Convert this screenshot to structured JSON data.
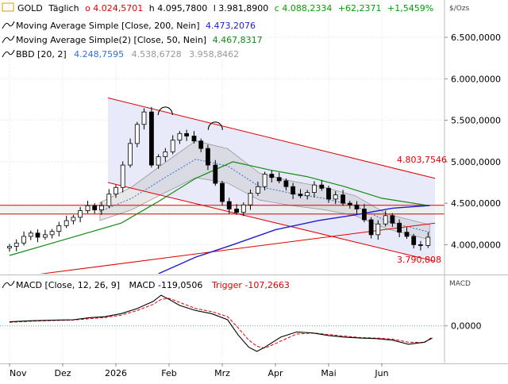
{
  "legend": {
    "line1": {
      "name": "GOLD",
      "period": "Täglich",
      "open": "o 4.024,5701",
      "high": "h 4.095,7800",
      "low": "l 3.981,8900",
      "close": "c 4.088,2334",
      "change": "+62,2371",
      "change_pct": "+1,5459%"
    },
    "ma200": {
      "label": "Moving Average Simple  [Close, 200, Nein]",
      "value": "4.473,2076"
    },
    "ma50": {
      "label": "Moving Average Simple(2)  [Close, 50, Nein]",
      "value": "4.467,8317"
    },
    "bbd": {
      "label": "BBD  [20, 2]",
      "mid": "4.248,7595",
      "upper": "4.538,6728",
      "lower": "3.958,8462"
    }
  },
  "unit_label": "$/Ozs",
  "macd": {
    "label": "MACD  [Close, 12, 26, 9]",
    "macd_text": "MACD -119,0506",
    "trigger_text": "Trigger -107,2663",
    "axis_label": "MACD",
    "zero_label": "0,0000"
  },
  "annotations": {
    "upper_value": "4.803,7546",
    "lower_value": "3.790,808"
  },
  "colors": {
    "price": "#000000",
    "up": "#00a000",
    "down": "#e00000",
    "ma200": "#1d1dcc",
    "ma50": "#138a13",
    "bollinger": "#999999",
    "channel": "#e00000",
    "channel_fill": "#e4e6f8",
    "signal": "#e00000",
    "accent_blue": "#3070d0"
  },
  "chart_data": [
    {
      "type": "line",
      "x_tick_labels": [
        "Nov",
        "Dez",
        "2026",
        "Feb",
        "Mrz",
        "Apr",
        "Mai",
        "Jun"
      ],
      "y_tick_labels": [
        "4.000,0000",
        "4.500,0000",
        "5.000,0000",
        "5.500,0000",
        "6.000,0000",
        "6.500,0000"
      ],
      "y_ticks": [
        4000,
        4500,
        5000,
        5500,
        6000,
        6500
      ],
      "ylim": [
        3650,
        6950
      ],
      "horizontal_levels": [
        4475,
        4370
      ],
      "trend_channel_upper": [
        [
          1.85,
          5770
        ],
        [
          8.0,
          4800
        ]
      ],
      "trend_channel_lower": [
        [
          1.85,
          4750
        ],
        [
          8.0,
          3800
        ]
      ],
      "support_line": [
        [
          -0.1,
          3590
        ],
        [
          8.0,
          4260
        ]
      ],
      "series": [
        {
          "name": "GOLD",
          "x": [
            0.0,
            0.13,
            0.27,
            0.4,
            0.53,
            0.67,
            0.8,
            0.93,
            1.07,
            1.2,
            1.33,
            1.47,
            1.6,
            1.73,
            1.87,
            2.0,
            2.13,
            2.27,
            2.4,
            2.53,
            2.67,
            2.8,
            2.93,
            3.07,
            3.2,
            3.33,
            3.47,
            3.6,
            3.73,
            3.87,
            4.0,
            4.13,
            4.27,
            4.4,
            4.53,
            4.67,
            4.8,
            4.93,
            5.07,
            5.2,
            5.33,
            5.47,
            5.6,
            5.73,
            5.87,
            6.0,
            6.13,
            6.27,
            6.4,
            6.53,
            6.67,
            6.8,
            6.93,
            7.07,
            7.2,
            7.33,
            7.47,
            7.6,
            7.73,
            7.87
          ],
          "y": [
            3980,
            4020,
            4100,
            4140,
            4090,
            4120,
            4160,
            4230,
            4290,
            4330,
            4410,
            4470,
            4420,
            4470,
            4610,
            4690,
            4960,
            5220,
            5450,
            5600,
            4960,
            5060,
            5120,
            5260,
            5340,
            5310,
            5250,
            5160,
            4960,
            4740,
            4520,
            4430,
            4390,
            4480,
            4620,
            4700,
            4850,
            4810,
            4770,
            4700,
            4610,
            4590,
            4630,
            4720,
            4680,
            4550,
            4600,
            4500,
            4480,
            4430,
            4300,
            4120,
            4250,
            4350,
            4260,
            4150,
            4100,
            4000,
            3990,
            4090
          ]
        },
        {
          "name": "Moving Average Simple  [Close, 200, Nein]",
          "x": [
            2.8,
            3.5,
            4.2,
            5.0,
            5.8,
            6.5,
            7.2,
            7.9
          ],
          "y": [
            3650,
            3850,
            4000,
            4180,
            4290,
            4360,
            4440,
            4473
          ]
        },
        {
          "name": "Moving Average Simple(2)  [Close, 50, Nein]",
          "x": [
            0.0,
            0.7,
            1.4,
            2.1,
            2.8,
            3.5,
            4.2,
            4.9,
            5.6,
            6.3,
            7.0,
            7.9
          ],
          "y": [
            3870,
            4000,
            4130,
            4260,
            4520,
            4800,
            5000,
            4900,
            4820,
            4700,
            4560,
            4470
          ]
        },
        {
          "name": "BBD  [20, 2]",
          "x": [
            1.7,
            2.3,
            2.9,
            3.5,
            4.1,
            4.7,
            5.3,
            5.9,
            6.5,
            7.1,
            7.9
          ],
          "y": [
            4400,
            4560,
            4800,
            5030,
            4950,
            4700,
            4620,
            4560,
            4470,
            4280,
            4150
          ]
        }
      ]
    },
    {
      "type": "line",
      "title": "MACD  [Close, 12, 26, 9]",
      "ylim": [
        -360,
        480
      ],
      "y_ticks": [
        0
      ],
      "y_tick_labels": [
        "0,0000"
      ],
      "series": [
        {
          "name": "MACD",
          "x": [
            0.0,
            0.4,
            0.8,
            1.2,
            1.5,
            1.8,
            2.1,
            2.4,
            2.7,
            2.85,
            3.0,
            3.2,
            3.5,
            3.8,
            4.1,
            4.3,
            4.5,
            4.65,
            4.8,
            5.1,
            5.4,
            5.7,
            6.0,
            6.3,
            6.6,
            6.9,
            7.2,
            7.5,
            7.8,
            7.95
          ],
          "y": [
            40,
            50,
            55,
            60,
            80,
            90,
            120,
            170,
            240,
            300,
            260,
            200,
            150,
            120,
            60,
            -90,
            -210,
            -250,
            -210,
            -110,
            -60,
            -70,
            -95,
            -110,
            -120,
            -125,
            -140,
            -180,
            -160,
            -119
          ]
        },
        {
          "name": "Trigger",
          "x": [
            0.0,
            0.4,
            0.8,
            1.2,
            1.5,
            1.8,
            2.1,
            2.4,
            2.7,
            2.85,
            3.0,
            3.2,
            3.5,
            3.8,
            4.1,
            4.3,
            4.5,
            4.65,
            4.8,
            5.1,
            5.4,
            5.7,
            6.0,
            6.3,
            6.6,
            6.9,
            7.2,
            7.5,
            7.8,
            7.95
          ],
          "y": [
            35,
            45,
            52,
            57,
            70,
            82,
            105,
            150,
            210,
            260,
            270,
            230,
            170,
            140,
            90,
            -20,
            -140,
            -200,
            -220,
            -150,
            -80,
            -70,
            -85,
            -100,
            -115,
            -120,
            -130,
            -160,
            -165,
            -107
          ]
        }
      ]
    }
  ]
}
